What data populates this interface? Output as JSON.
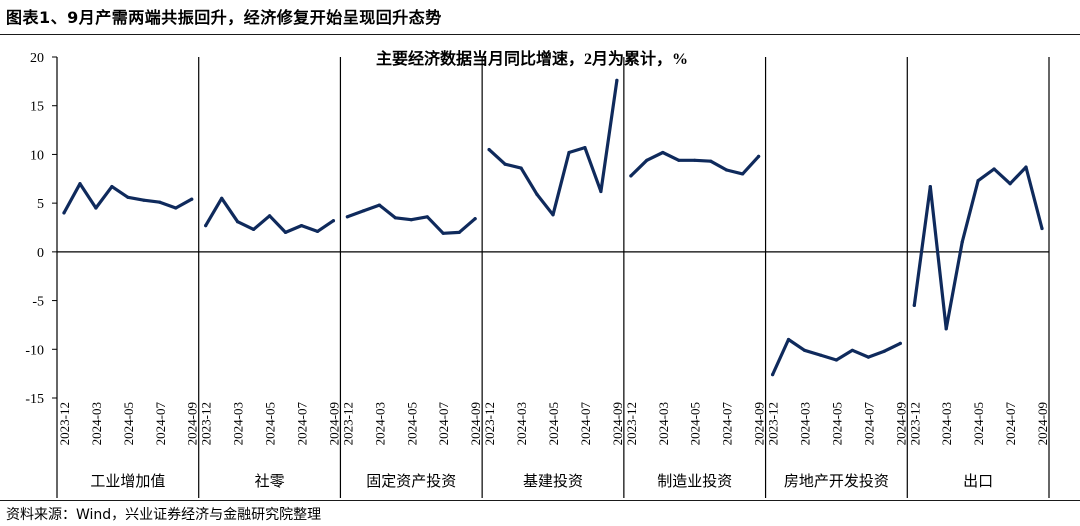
{
  "figure_title": "图表1、9月产需两端共振回升，经济修复开始呈现回升态势",
  "source_note": "资料来源：Wind，兴业证券经济与金融研究院整理",
  "chart_data": {
    "type": "line",
    "title": "主要经济数据当月同比增速，2月为累计，%",
    "ylim": [
      -15,
      20
    ],
    "yticks": [
      -15,
      -10,
      -5,
      0,
      5,
      10,
      15,
      20
    ],
    "grid": false,
    "line_color": "#0f2a5c",
    "period_labels": [
      "2023-12",
      "2024-03",
      "2024-05",
      "2024-07",
      "2024-09"
    ],
    "panels": [
      {
        "name": "工业增加值",
        "values": [
          4.0,
          7.0,
          4.5,
          6.7,
          5.6,
          5.3,
          5.1,
          4.5,
          5.4
        ]
      },
      {
        "name": "社零",
        "values": [
          2.7,
          5.5,
          3.1,
          2.3,
          3.7,
          2.0,
          2.7,
          2.1,
          3.2
        ]
      },
      {
        "name": "固定资产投资",
        "values": [
          3.6,
          4.2,
          4.8,
          3.5,
          3.3,
          3.6,
          1.9,
          2.0,
          3.4
        ]
      },
      {
        "name": "基建投资",
        "values": [
          10.5,
          9.0,
          8.6,
          5.9,
          3.8,
          10.2,
          10.7,
          6.2,
          17.6
        ]
      },
      {
        "name": "制造业投资",
        "values": [
          7.8,
          9.4,
          10.2,
          9.4,
          9.4,
          9.3,
          8.4,
          8.0,
          9.8
        ]
      },
      {
        "name": "房地产开发投资",
        "values": [
          -12.6,
          -9.0,
          -10.1,
          -10.6,
          -11.1,
          -10.1,
          -10.8,
          -10.2,
          -9.4
        ]
      },
      {
        "name": "出口",
        "values": [
          -5.5,
          6.7,
          -7.9,
          1.0,
          7.3,
          8.5,
          7.0,
          8.7,
          2.4
        ]
      }
    ]
  }
}
